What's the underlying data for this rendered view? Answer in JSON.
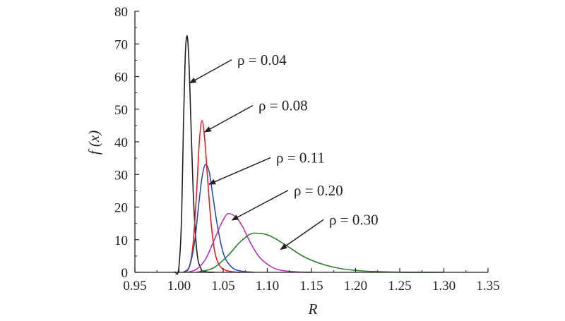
{
  "chart_data": {
    "type": "line",
    "title": "",
    "xlabel": "R",
    "ylabel": "f (x)",
    "xlim": [
      0.95,
      1.35
    ],
    "ylim": [
      0,
      80
    ],
    "xticks": [
      0.95,
      1.0,
      1.05,
      1.1,
      1.15,
      1.2,
      1.25,
      1.3,
      1.35
    ],
    "xtick_labels": [
      "0.95",
      "1.00",
      "1.05",
      "1.10",
      "1.15",
      "1.20",
      "1.25",
      "1.30",
      "1.35"
    ],
    "yticks": [
      0,
      10,
      20,
      30,
      40,
      50,
      60,
      70,
      80
    ],
    "ytick_labels": [
      "0",
      "10",
      "20",
      "30",
      "40",
      "50",
      "60",
      "70",
      "80"
    ],
    "grid": false,
    "legend": "none",
    "series": [
      {
        "color": "#231f20",
        "x": [
          0.995,
          1.0,
          1.003,
          1.005,
          1.007,
          1.009,
          1.011,
          1.013,
          1.016,
          1.02,
          1.025,
          1.03,
          1.04
        ],
        "y": [
          0,
          2,
          18,
          45,
          66,
          72.5,
          66,
          50,
          25,
          7,
          1,
          0.2,
          0
        ]
      },
      {
        "color": "#e21f26",
        "x": [
          1.005,
          1.012,
          1.016,
          1.02,
          1.023,
          1.026,
          1.029,
          1.032,
          1.036,
          1.04,
          1.045,
          1.05,
          1.06,
          1.07
        ],
        "y": [
          0,
          2,
          9,
          25,
          40,
          46.5,
          41,
          30,
          16,
          7,
          2.5,
          1,
          0.2,
          0
        ]
      },
      {
        "color": "#2b4ea2",
        "x": [
          1.005,
          1.012,
          1.018,
          1.022,
          1.026,
          1.03,
          1.034,
          1.038,
          1.043,
          1.05,
          1.06,
          1.07,
          1.085
        ],
        "y": [
          0,
          2,
          10,
          20,
          29,
          33,
          31,
          24,
          15,
          6,
          1.5,
          0.4,
          0
        ]
      },
      {
        "color": "#b036b3",
        "x": [
          1.01,
          1.02,
          1.03,
          1.04,
          1.048,
          1.056,
          1.064,
          1.072,
          1.08,
          1.09,
          1.1,
          1.11,
          1.13,
          1.15
        ],
        "y": [
          0,
          1,
          4,
          10,
          15,
          18,
          17,
          14,
          9.5,
          5,
          2.5,
          1,
          0.2,
          0
        ]
      },
      {
        "color": "#2e7d32",
        "x": [
          1.02,
          1.04,
          1.055,
          1.07,
          1.085,
          1.1,
          1.12,
          1.14,
          1.16,
          1.18,
          1.2,
          1.22,
          1.25,
          1.3
        ],
        "y": [
          0,
          1.5,
          5,
          9.5,
          12,
          11.5,
          8.5,
          5,
          2.7,
          1.3,
          0.6,
          0.25,
          0.05,
          0
        ]
      }
    ],
    "annotations": [
      {
        "text": "ρ = 0.04",
        "point": [
          1.012,
          58
        ],
        "text_at": [
          1.066,
          66
        ]
      },
      {
        "text": "ρ = 0.08",
        "point": [
          1.029,
          43
        ],
        "text_at": [
          1.09,
          52
        ]
      },
      {
        "text": "ρ = 0.11",
        "point": [
          1.034,
          27
        ],
        "text_at": [
          1.11,
          36
        ]
      },
      {
        "text": "ρ = 0.20",
        "point": [
          1.06,
          16
        ],
        "text_at": [
          1.13,
          26
        ]
      },
      {
        "text": "ρ = 0.30",
        "point": [
          1.115,
          7
        ],
        "text_at": [
          1.17,
          17
        ]
      }
    ]
  }
}
